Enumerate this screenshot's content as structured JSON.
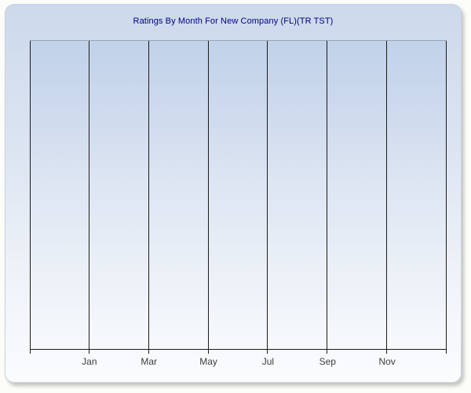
{
  "window": {
    "background_color": "#fcfcf8",
    "panel_border_color": "#c9d3e2",
    "panel_gradient_top": "#ccd9ec",
    "panel_gradient_bottom": "#fafcfe"
  },
  "chart_data": {
    "type": "line",
    "title": "Ratings By Month For New Company (FL)(TR TST)",
    "title_color": "#000080",
    "x_tick_labels": [
      "Jan",
      "Mar",
      "May",
      "Jul",
      "Sep",
      "Nov"
    ],
    "series": [],
    "plotted_points": "none - chart area is empty, no data rendered",
    "grid": "vertical gridlines only",
    "gridline_count": 8,
    "label_gridline_indices": [
      1,
      2,
      3,
      4,
      5,
      6
    ],
    "gridline_color": "#1b1b1b",
    "axis_line_color": "#1b1b1b",
    "plot_top_border_color": "#9aa4b6",
    "tick_label_color": "#3d3d3d",
    "legend": "none",
    "y_axis_ticks": "none visible"
  }
}
